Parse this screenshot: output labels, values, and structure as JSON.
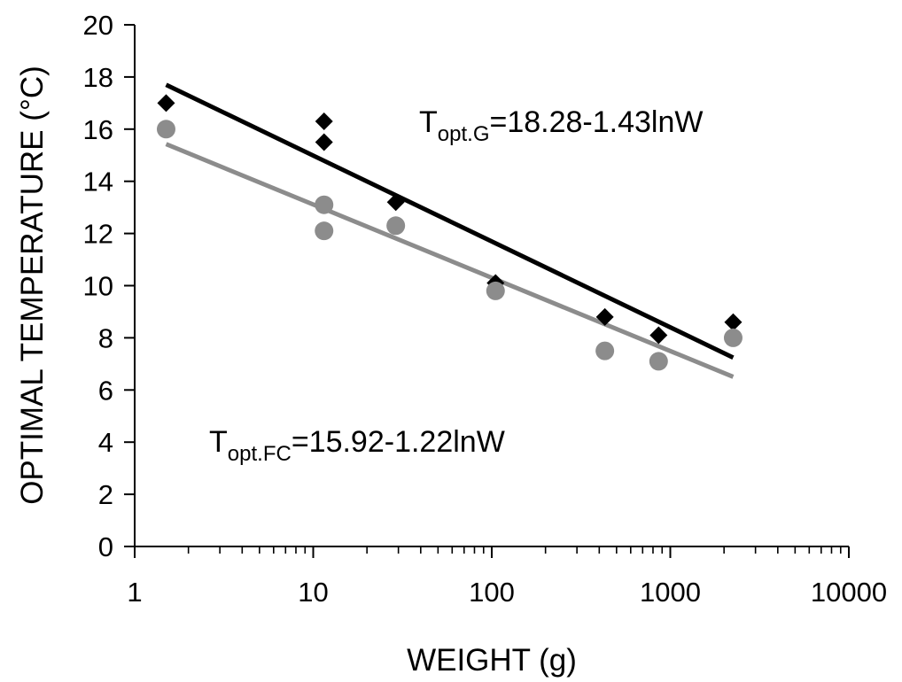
{
  "chart_data": {
    "type": "scatter",
    "title": "",
    "xlabel": "WEIGHT (g)",
    "ylabel": "OPTIMAL TEMPERATURE (°C)",
    "xscale": "log",
    "xlim": [
      1,
      10000
    ],
    "ylim": [
      0,
      20
    ],
    "x_ticks": [
      1,
      10,
      100,
      1000,
      10000
    ],
    "x_tick_labels": [
      "1",
      "10",
      "100",
      "1000",
      "10000"
    ],
    "y_ticks": [
      0,
      2,
      4,
      6,
      8,
      10,
      12,
      14,
      16,
      18,
      20
    ],
    "y_tick_labels": [
      "0",
      "2",
      "4",
      "6",
      "8",
      "10",
      "12",
      "14",
      "16",
      "18",
      "20"
    ],
    "grid": false,
    "legend": false,
    "series": [
      {
        "marker": "diamond",
        "color": "#000000",
        "points": [
          {
            "x": 1.5,
            "y": 17.0
          },
          {
            "x": 11.5,
            "y": 16.3
          },
          {
            "x": 11.5,
            "y": 15.5
          },
          {
            "x": 29,
            "y": 13.2
          },
          {
            "x": 105,
            "y": 10.1
          },
          {
            "x": 430,
            "y": 8.8
          },
          {
            "x": 860,
            "y": 8.1
          },
          {
            "x": 2250,
            "y": 8.6
          }
        ]
      },
      {
        "marker": "circle",
        "color": "#8c8c8c",
        "points": [
          {
            "x": 1.5,
            "y": 16.0
          },
          {
            "x": 11.5,
            "y": 13.1
          },
          {
            "x": 11.5,
            "y": 12.1
          },
          {
            "x": 29,
            "y": 12.3
          },
          {
            "x": 105,
            "y": 9.8
          },
          {
            "x": 430,
            "y": 7.5
          },
          {
            "x": 860,
            "y": 7.1
          },
          {
            "x": 2250,
            "y": 8.0
          }
        ]
      }
    ],
    "fits": [
      {
        "intercept": 18.28,
        "slope": -1.43,
        "x_range": [
          1.5,
          2250
        ],
        "color": "#000000"
      },
      {
        "intercept": 15.92,
        "slope": -1.22,
        "x_range": [
          1.5,
          2250
        ],
        "color": "#8c8c8c"
      }
    ],
    "annotations": [
      {
        "main": "T",
        "sub": "opt.G",
        "rest": "=18.28-1.43lnW"
      },
      {
        "main": "T",
        "sub": "opt.FC",
        "rest": "=15.92-1.22lnW"
      }
    ]
  }
}
